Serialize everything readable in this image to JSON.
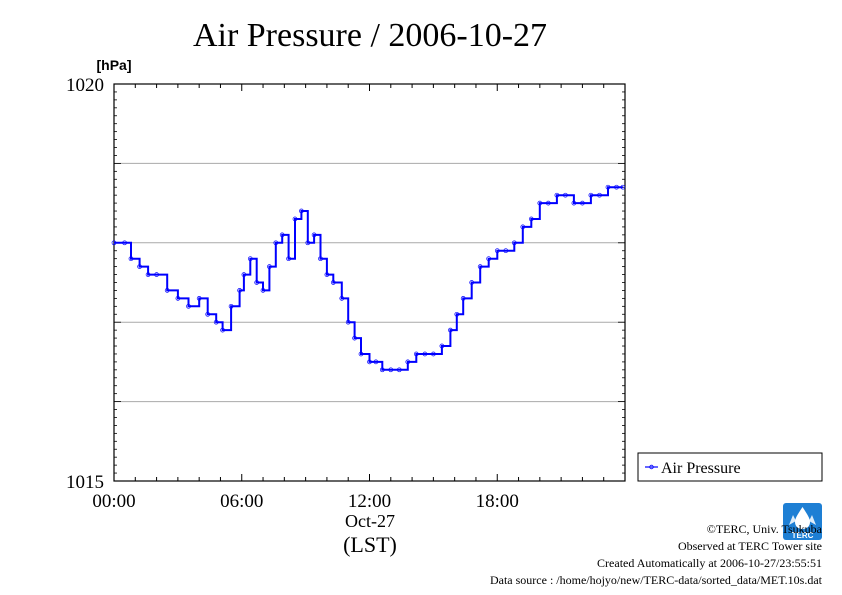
{
  "chart_data": {
    "type": "line",
    "title": "Air Pressure / 2006-10-27",
    "ylabel": "[hPa]",
    "xlabel": "(LST)",
    "date_label": "Oct-27",
    "ylim": [
      1015,
      1020
    ],
    "xlim": [
      0,
      24
    ],
    "y_tick_labels": [
      "1015",
      "1020"
    ],
    "y_gridlines": [
      1016,
      1017,
      1018,
      1019
    ],
    "x_ticks": [
      0,
      6,
      12,
      18
    ],
    "x_tick_labels": [
      "00:00",
      "06:00",
      "12:00",
      "18:00"
    ],
    "grid": true,
    "legend_position": "right",
    "series": [
      {
        "name": "Air Pressure",
        "color": "#0000ff",
        "x": [
          0.0,
          0.5,
          0.8,
          1.2,
          1.6,
          2.0,
          2.5,
          3.0,
          3.5,
          4.0,
          4.4,
          4.8,
          5.1,
          5.5,
          5.9,
          6.1,
          6.4,
          6.7,
          7.0,
          7.3,
          7.6,
          7.9,
          8.2,
          8.5,
          8.8,
          9.1,
          9.4,
          9.7,
          10.0,
          10.3,
          10.7,
          11.0,
          11.3,
          11.6,
          12.0,
          12.3,
          12.6,
          13.0,
          13.4,
          13.8,
          14.2,
          14.6,
          15.0,
          15.4,
          15.8,
          16.1,
          16.4,
          16.8,
          17.2,
          17.6,
          18.0,
          18.4,
          18.8,
          19.2,
          19.6,
          20.0,
          20.4,
          20.8,
          21.2,
          21.6,
          22.0,
          22.4,
          22.8,
          23.2,
          23.6,
          23.9
        ],
        "y": [
          1018.0,
          1018.0,
          1017.8,
          1017.7,
          1017.6,
          1017.6,
          1017.4,
          1017.3,
          1017.2,
          1017.3,
          1017.1,
          1017.0,
          1016.9,
          1017.2,
          1017.4,
          1017.6,
          1017.8,
          1017.5,
          1017.4,
          1017.7,
          1018.0,
          1018.1,
          1017.8,
          1018.3,
          1018.4,
          1018.0,
          1018.1,
          1017.8,
          1017.6,
          1017.5,
          1017.3,
          1017.0,
          1016.8,
          1016.6,
          1016.5,
          1016.5,
          1016.4,
          1016.4,
          1016.4,
          1016.5,
          1016.6,
          1016.6,
          1016.6,
          1016.7,
          1016.9,
          1017.1,
          1017.3,
          1017.5,
          1017.7,
          1017.8,
          1017.9,
          1017.9,
          1018.0,
          1018.2,
          1018.3,
          1018.5,
          1018.5,
          1018.6,
          1018.6,
          1018.5,
          1018.5,
          1018.6,
          1018.6,
          1018.7,
          1018.7,
          1018.7
        ]
      }
    ]
  },
  "footer": {
    "copyright": "©TERC, Univ. Tsukuba",
    "observed": "Observed at TERC Tower site",
    "created": "Created Automatically at 2006-10-27/23:55:51",
    "source": "Data source : /home/hojyo/new/TERC-data/sorted_data/MET.10s.dat"
  },
  "logo": {
    "text": "TERC",
    "color": "#1e7fd4"
  }
}
